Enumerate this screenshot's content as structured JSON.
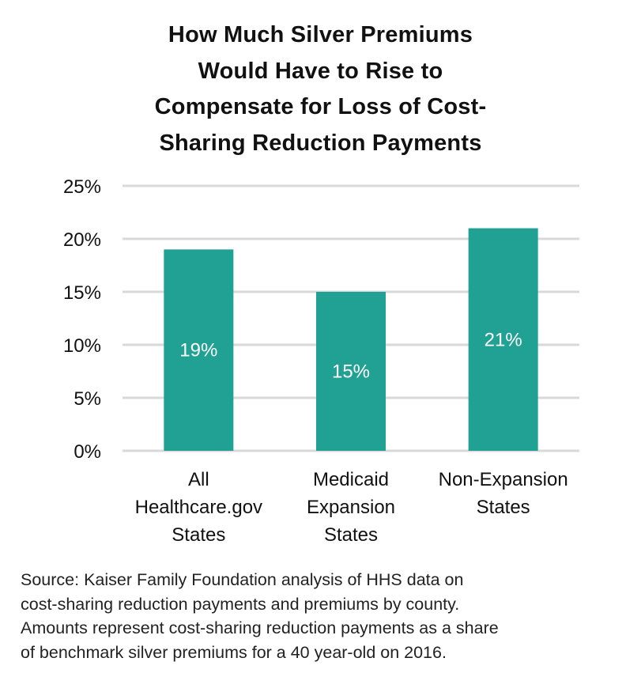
{
  "chart_data": {
    "type": "bar",
    "title": "How Much Silver Premiums\nWould Have to Rise to\nCompensate for Loss of Cost-\nSharing Reduction Payments",
    "categories": [
      [
        "All",
        "Healthcare.gov",
        "States"
      ],
      [
        "Medicaid",
        "Expansion",
        "States"
      ],
      [
        "Non-Expansion",
        "States"
      ]
    ],
    "values": [
      19,
      15,
      21
    ],
    "data_labels": [
      "19%",
      "15%",
      "21%"
    ],
    "xlabel": "",
    "ylabel": "",
    "ylim": [
      0,
      25
    ],
    "yticks": [
      0,
      5,
      10,
      15,
      20,
      25
    ],
    "ytick_labels": [
      "0%",
      "5%",
      "10%",
      "15%",
      "20%",
      "25%"
    ],
    "grid": true,
    "legend": "none",
    "bar_color": "#21a094",
    "grid_color": "#d9d9d9",
    "label_color": "#ffffff"
  },
  "source_note": "Source: Kaiser Family Foundation analysis of HHS data on\ncost-sharing reduction payments and premiums by county.\nAmounts represent cost-sharing reduction payments as a share\nof benchmark silver premiums for a 40 year-old on 2016."
}
